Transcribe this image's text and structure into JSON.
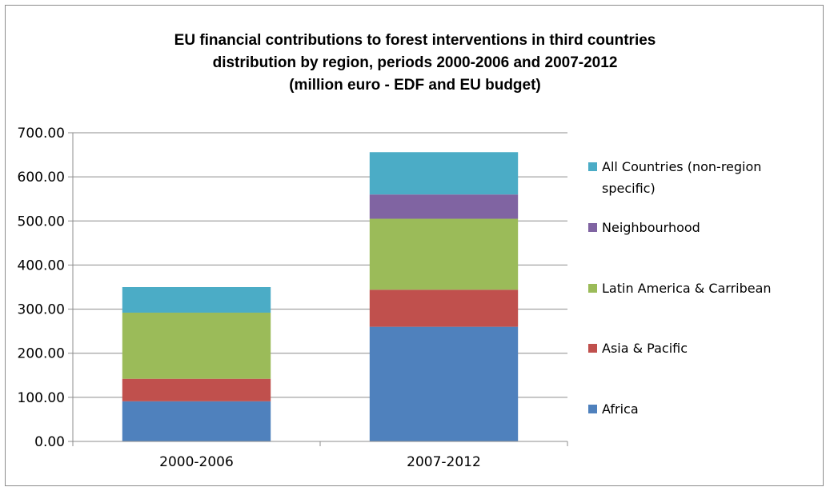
{
  "chart_data": {
    "type": "bar",
    "stacked": true,
    "title_lines": [
      "EU financial  contributions to forest interventions in third countries",
      "distribution by region, periods 2000-2006 and 2007-2012",
      "(million euro - EDF and EU budget)"
    ],
    "categories": [
      "2000-2006",
      "2007-2012"
    ],
    "series": [
      {
        "name": "Africa",
        "color": "#4f81bd",
        "values": [
          91,
          260
        ]
      },
      {
        "name": "Asia & Pacific",
        "color": "#c0504d",
        "values": [
          51,
          84
        ]
      },
      {
        "name": "Latin America & Carribean",
        "color": "#9bbb59",
        "values": [
          150,
          161
        ]
      },
      {
        "name": "Neighbourhood",
        "color": "#8064a2",
        "values": [
          0,
          55
        ]
      },
      {
        "name": "All Countries (non-region specific)",
        "color": "#4bacc6",
        "values": [
          58,
          96
        ]
      }
    ],
    "legend": [
      {
        "series": 4,
        "lines": [
          "All Countries (non-region",
          "specific)"
        ]
      },
      {
        "series": 3,
        "lines": [
          "Neighbourhood"
        ]
      },
      {
        "series": 2,
        "lines": [
          "Latin America & Carribean"
        ]
      },
      {
        "series": 1,
        "lines": [
          "Asia & Pacific"
        ]
      },
      {
        "series": 0,
        "lines": [
          "Africa"
        ]
      }
    ],
    "yticks": [
      "0.00",
      "100.00",
      "200.00",
      "300.00",
      "400.00",
      "500.00",
      "600.00",
      "700.00"
    ],
    "ylim": [
      0,
      700
    ],
    "ystep": 100,
    "grid": true,
    "legend_position": "right"
  }
}
